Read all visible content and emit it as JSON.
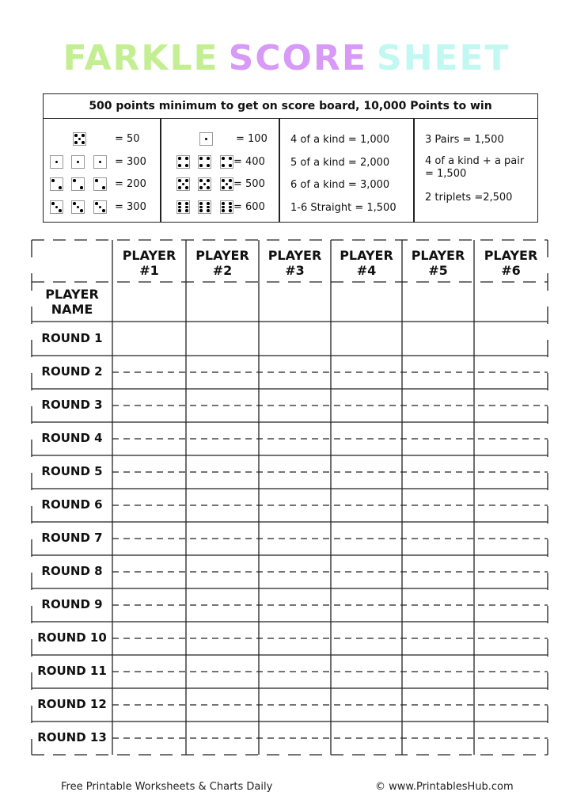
{
  "title": {
    "words": [
      "FARKLE",
      "SCORE",
      "SHEET"
    ],
    "colors": [
      "#c3ef92",
      "#d79af7",
      "#c2f8f2"
    ]
  },
  "rules": {
    "header": "500 points minimum to get on score board, 10,000 Points to win",
    "dice_scores": [
      {
        "dice": [
          5
        ],
        "value": "= 50"
      },
      {
        "dice": [
          1,
          1,
          1
        ],
        "value": "= 300"
      },
      {
        "dice": [
          2,
          2,
          2
        ],
        "value": "= 200"
      },
      {
        "dice": [
          3,
          3,
          3
        ],
        "value": "= 300"
      },
      {
        "dice": [
          1
        ],
        "value": "= 100"
      },
      {
        "dice": [
          4,
          4,
          4
        ],
        "value": "= 400"
      },
      {
        "dice": [
          5,
          5,
          5
        ],
        "value": "= 500"
      },
      {
        "dice": [
          6,
          6,
          6
        ],
        "value": "= 600"
      }
    ],
    "combos_a": [
      "4 of a kind = 1,000",
      "5 of a kind = 2,000",
      "6 of a kind = 3,000",
      "1-6 Straight = 1,500"
    ],
    "combos_b": [
      "3 Pairs = 1,500",
      "4 of a kind + a pair = 1,500",
      "2 triplets =2,500"
    ]
  },
  "table": {
    "players": [
      "PLAYER #1",
      "PLAYER #2",
      "PLAYER #3",
      "PLAYER #4",
      "PLAYER #5",
      "PLAYER #6"
    ],
    "name_row": "PLAYER NAME",
    "rounds": [
      "ROUND 1",
      "ROUND 2",
      "ROUND 3",
      "ROUND 4",
      "ROUND 5",
      "ROUND 6",
      "ROUND 7",
      "ROUND 8",
      "ROUND 9",
      "ROUND 10",
      "ROUND 11",
      "ROUND 12",
      "ROUND 13"
    ]
  },
  "footer": {
    "left": "Free Printable Worksheets & Charts Daily",
    "right": "© www.PrintablesHub.com"
  }
}
